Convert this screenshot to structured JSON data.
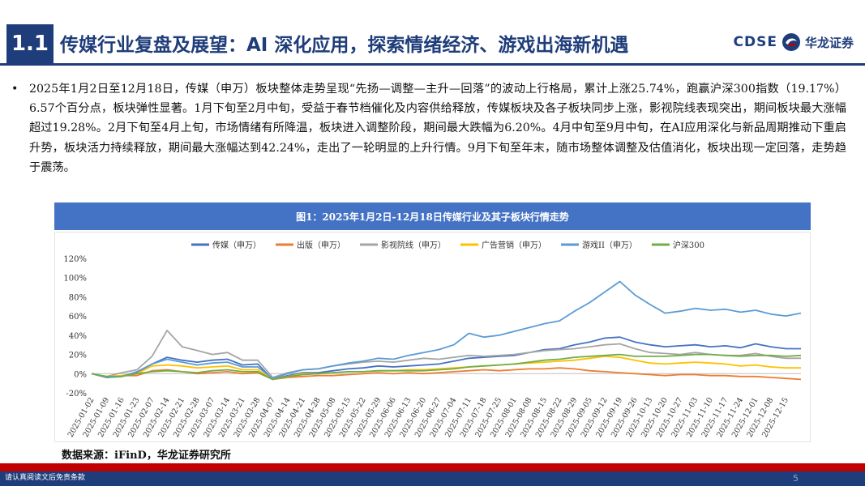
{
  "header": {
    "section_number": "1.1",
    "title": "传媒行业复盘及展望：AI 深化应用，探索情绪经济、游戏出海新机遇",
    "logo_latin": "CDSE",
    "logo_cn": "华龙证券"
  },
  "body": {
    "bullet": "•",
    "paragraph": "2025年1月2日至12月18日，传媒（申万）板块整体走势呈现“先扬—调整—主升—回落”的波动上行格局，累计上涨25.74%，跑赢沪深300指数（19.17%）6.57个百分点，板块弹性显著。1月下旬至2月中旬，受益于春节档催化及内容供给释放，传媒板块及各子板块同步上涨，影视院线表现突出，期间板块最大涨幅超过19.28%。2月下旬至4月上旬，市场情绪有所降温，板块进入调整阶段，期间最大跌幅为6.20%。4月中旬至9月中旬，在AI应用深化与新品周期推动下重启升势，板块活力持续释放，期间最大涨幅达到42.24%，走出了一轮明显的上升行情。9月下旬至年末，随市场整体调整及估值消化，板块出现一定回落，走势趋于震荡。"
  },
  "chart_title": "图1：2025年1月2日-12月18日传媒行业及其子板块行情走势",
  "source": "数据来源：iFinD，华龙证券研究所",
  "footer": {
    "disclaimer": "请认真阅读文后免责条款",
    "page_number": "5"
  },
  "chart_data": {
    "type": "line",
    "title": "图1：2025年1月2日-12月18日传媒行业及其子板块行情走势",
    "xlabel": "",
    "ylabel": "",
    "ylim": [
      -20,
      120
    ],
    "y_ticks": [
      "-20%",
      "0%",
      "20%",
      "40%",
      "60%",
      "80%",
      "100%",
      "120%"
    ],
    "y_unit": "%",
    "grid": false,
    "legend_position": "top",
    "x_tick_labels": [
      "2025-01-02",
      "2025-01-09",
      "2025-01-16",
      "2025-01-23",
      "2025-02-07",
      "2025-02-14",
      "2025-02-21",
      "2025-02-28",
      "2025-03-07",
      "2025-03-14",
      "2025-03-21",
      "2025-03-28",
      "2025-04-07",
      "2025-04-14",
      "2025-04-21",
      "2025-04-28",
      "2025-05-08",
      "2025-05-15",
      "2025-05-22",
      "2025-05-29",
      "2025-06-06",
      "2025-06-13",
      "2025-06-20",
      "2025-06-27",
      "2025-07-04",
      "2025-07-11",
      "2025-07-18",
      "2025-07-25",
      "2025-08-01",
      "2025-08-08",
      "2025-08-15",
      "2025-08-22",
      "2025-08-29",
      "2025-09-05",
      "2025-09-12",
      "2025-09-19",
      "2025-09-26",
      "2025-10-13",
      "2025-10-20",
      "2025-10-27",
      "2025-11-03",
      "2025-11-10",
      "2025-11-17",
      "2025-11-24",
      "2025-12-01",
      "2025-12-08",
      "2025-12-15"
    ],
    "x": [
      "2025-01-02",
      "2025-01-09",
      "2025-01-16",
      "2025-01-23",
      "2025-02-07",
      "2025-02-14",
      "2025-02-21",
      "2025-02-28",
      "2025-03-07",
      "2025-03-14",
      "2025-03-21",
      "2025-03-28",
      "2025-04-07",
      "2025-04-14",
      "2025-04-21",
      "2025-04-28",
      "2025-05-08",
      "2025-05-15",
      "2025-05-22",
      "2025-05-29",
      "2025-06-06",
      "2025-06-13",
      "2025-06-20",
      "2025-06-27",
      "2025-07-04",
      "2025-07-11",
      "2025-07-18",
      "2025-07-25",
      "2025-08-01",
      "2025-08-08",
      "2025-08-15",
      "2025-08-22",
      "2025-08-29",
      "2025-09-05",
      "2025-09-12",
      "2025-09-19",
      "2025-09-26",
      "2025-10-13",
      "2025-10-20",
      "2025-10-27",
      "2025-11-03",
      "2025-11-10",
      "2025-11-17",
      "2025-11-24",
      "2025-12-01",
      "2025-12-08",
      "2025-12-15",
      "2025-12-18"
    ],
    "series": [
      {
        "name": "传媒（申万）",
        "color": "#4472c4",
        "values": [
          0,
          -4,
          -3,
          1,
          10,
          17,
          14,
          12,
          14,
          15,
          9,
          10,
          -6,
          -2,
          1,
          1,
          3,
          5,
          6,
          8,
          7,
          8,
          9,
          10,
          13,
          16,
          17,
          18,
          19,
          22,
          25,
          26,
          30,
          33,
          37,
          38,
          33,
          30,
          28,
          29,
          30,
          28,
          29,
          27,
          31,
          28,
          26,
          26
        ]
      },
      {
        "name": "出版（申万）",
        "color": "#ed7d31",
        "values": [
          0,
          -4,
          -2,
          -2,
          3,
          4,
          2,
          0,
          1,
          2,
          0,
          1,
          -6,
          -4,
          -3,
          -2,
          -2,
          -1,
          0,
          1,
          0,
          1,
          0,
          1,
          2,
          3,
          4,
          3,
          4,
          5,
          5,
          6,
          5,
          3,
          2,
          1,
          0,
          -1,
          -2,
          -1,
          -1,
          -2,
          -2,
          -3,
          -3,
          -4,
          -5,
          -6
        ]
      },
      {
        "name": "影视院线（申万）",
        "color": "#a5a5a5",
        "values": [
          0,
          -3,
          1,
          4,
          18,
          45,
          28,
          24,
          20,
          22,
          14,
          14,
          -4,
          1,
          4,
          5,
          8,
          10,
          12,
          13,
          12,
          14,
          16,
          15,
          17,
          19,
          18,
          19,
          20,
          22,
          24,
          25,
          26,
          28,
          30,
          31,
          26,
          22,
          21,
          20,
          22,
          20,
          19,
          19,
          21,
          18,
          16,
          16
        ]
      },
      {
        "name": "广告营销（申万）",
        "color": "#ffc000",
        "values": [
          0,
          -3,
          -2,
          0,
          8,
          9,
          8,
          6,
          7,
          8,
          4,
          4,
          -6,
          -3,
          0,
          0,
          1,
          2,
          2,
          3,
          3,
          4,
          4,
          5,
          6,
          7,
          8,
          9,
          10,
          11,
          12,
          13,
          14,
          16,
          18,
          17,
          14,
          11,
          10,
          11,
          12,
          11,
          10,
          8,
          9,
          7,
          6,
          6
        ]
      },
      {
        "name": "游戏II（申万）",
        "color": "#5b9bd5",
        "values": [
          0,
          -4,
          -3,
          2,
          10,
          15,
          12,
          9,
          11,
          12,
          7,
          7,
          -5,
          0,
          4,
          5,
          8,
          11,
          13,
          16,
          15,
          19,
          22,
          25,
          30,
          42,
          38,
          40,
          44,
          48,
          52,
          55,
          65,
          74,
          85,
          96,
          82,
          72,
          63,
          65,
          68,
          66,
          67,
          64,
          66,
          62,
          60,
          63
        ]
      },
      {
        "name": "沪深300",
        "color": "#70ad47",
        "values": [
          0,
          -3,
          -3,
          0,
          2,
          3,
          2,
          1,
          3,
          4,
          2,
          2,
          -6,
          -3,
          -1,
          0,
          1,
          2,
          2,
          3,
          3,
          3,
          3,
          4,
          5,
          7,
          8,
          9,
          10,
          12,
          14,
          15,
          17,
          18,
          19,
          20,
          18,
          18,
          18,
          19,
          20,
          20,
          19,
          18,
          19,
          19,
          18,
          19
        ]
      }
    ]
  }
}
